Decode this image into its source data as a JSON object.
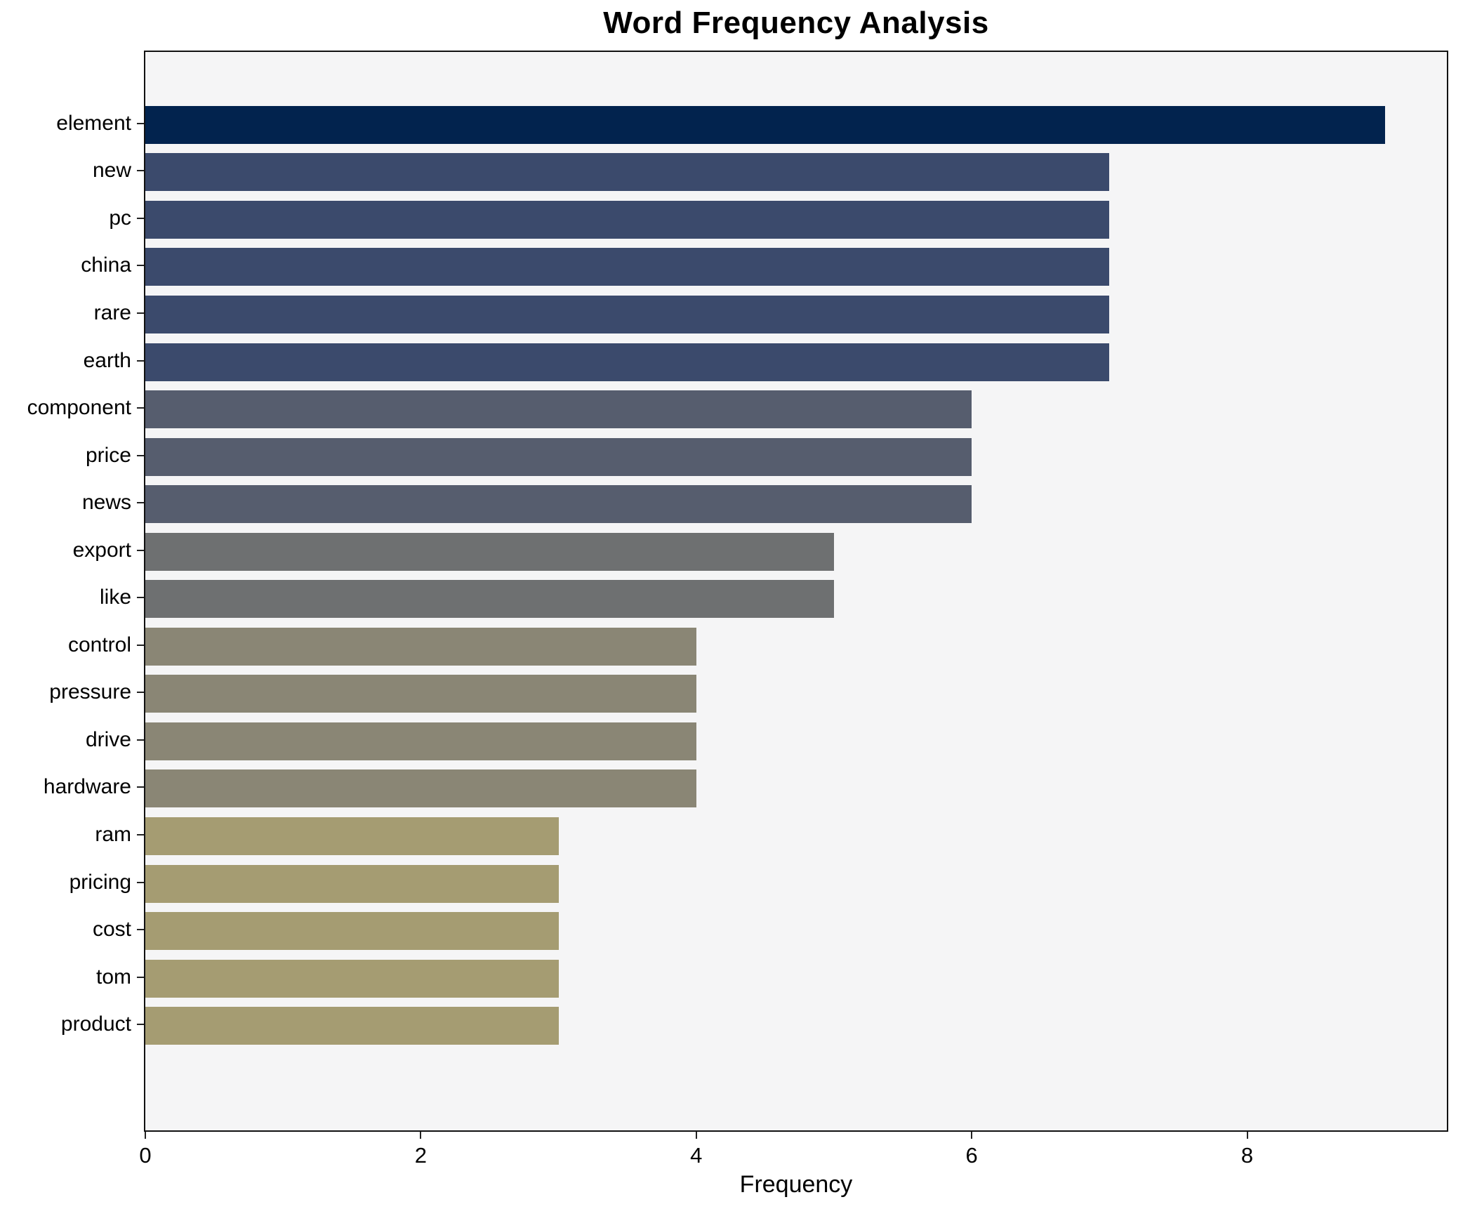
{
  "chart_data": {
    "type": "bar",
    "orientation": "horizontal",
    "title": "Word Frequency Analysis",
    "xlabel": "Frequency",
    "ylabel": "",
    "categories": [
      "element",
      "new",
      "pc",
      "china",
      "rare",
      "earth",
      "component",
      "price",
      "news",
      "export",
      "like",
      "control",
      "pressure",
      "drive",
      "hardware",
      "ram",
      "pricing",
      "cost",
      "tom",
      "product"
    ],
    "values": [
      9,
      7,
      7,
      7,
      7,
      7,
      6,
      6,
      6,
      5,
      5,
      4,
      4,
      4,
      4,
      3,
      3,
      3,
      3,
      3
    ],
    "bar_colors": [
      "#02234e",
      "#3b4a6c",
      "#3b4a6c",
      "#3b4a6c",
      "#3b4a6c",
      "#3b4a6c",
      "#565d6e",
      "#565d6e",
      "#565d6e",
      "#6e7071",
      "#6e7071",
      "#8a8675",
      "#8a8675",
      "#8a8675",
      "#8a8675",
      "#a59c72",
      "#a59c72",
      "#a59c72",
      "#a59c72",
      "#a59c72"
    ],
    "xticks": [
      0,
      2,
      4,
      6,
      8
    ],
    "xlim": [
      0,
      9.45
    ],
    "grid": false,
    "legend_position": "none",
    "plot_bg_color": "#f5f5f6",
    "figure_bg_color": "#ffffff",
    "spine_color": "#111111",
    "text_color": "#000000"
  }
}
